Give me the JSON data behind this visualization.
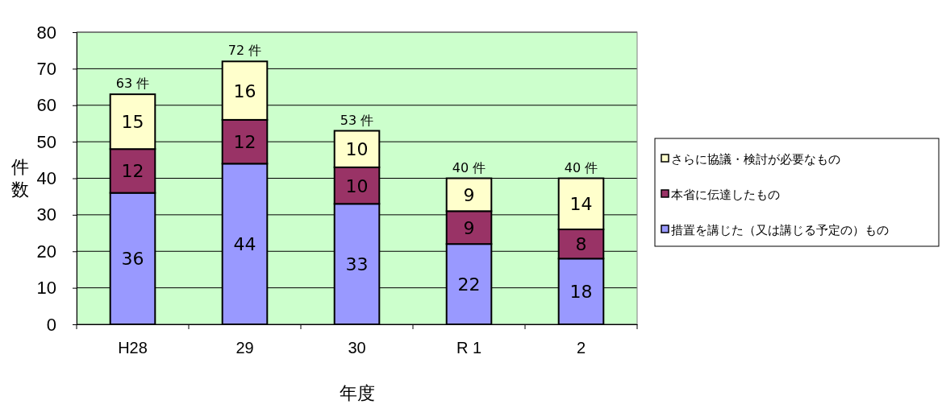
{
  "chart_data": {
    "type": "bar",
    "stacked": true,
    "xlabel": "年度",
    "ylabel": "件数",
    "categories": [
      "H28",
      "29",
      "30",
      "R 1",
      "2"
    ],
    "series": [
      {
        "name": "措置を講じた（又は講じる予定の）もの",
        "color": "#9999ff",
        "values": [
          36,
          44,
          33,
          22,
          18
        ]
      },
      {
        "name": "本省に伝達したもの",
        "color": "#993366",
        "values": [
          12,
          12,
          10,
          9,
          8
        ]
      },
      {
        "name": "さらに協議・検討が必要なもの",
        "color": "#ffffcc",
        "values": [
          15,
          16,
          10,
          9,
          14
        ]
      }
    ],
    "totals": [
      "63 件",
      "72 件",
      "53 件",
      "40 件",
      "40 件"
    ],
    "data_labels": true,
    "ylim": [
      0,
      80
    ],
    "yticks": [
      0,
      10,
      20,
      30,
      40,
      50,
      60,
      70,
      80
    ],
    "grid": "y",
    "legend": "right"
  }
}
